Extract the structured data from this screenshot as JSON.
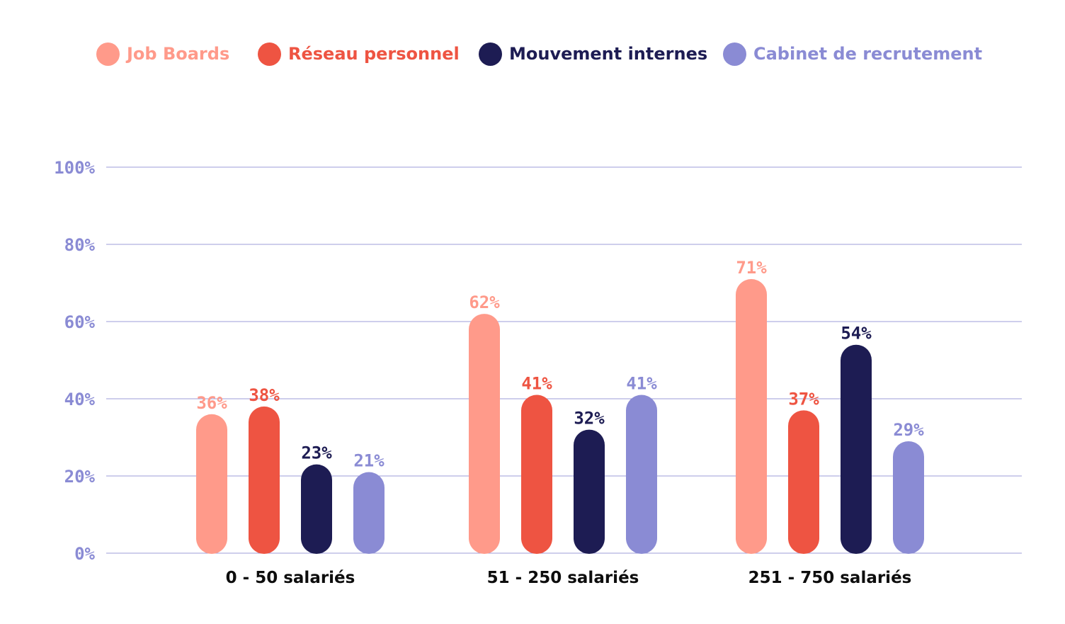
{
  "chart_data": {
    "type": "bar",
    "categories": [
      "0 - 50 salariés",
      "51 - 250 salariés",
      "251 - 750 salariés"
    ],
    "series": [
      {
        "name": "Job Boards",
        "values": [
          36,
          62,
          71
        ],
        "labels": [
          "36%",
          "62%",
          "71%"
        ],
        "color": "#ff9a8a"
      },
      {
        "name": "Réseau personnel",
        "values": [
          38,
          41,
          37
        ],
        "labels": [
          "38%",
          "41%",
          "37%"
        ],
        "color": "#ee5442"
      },
      {
        "name": "Mouvement internes",
        "values": [
          23,
          32,
          54
        ],
        "labels": [
          "23%",
          "32%",
          "54%"
        ],
        "color": "#1d1c53"
      },
      {
        "name": "Cabinet de recrutement",
        "values": [
          21,
          41,
          29
        ],
        "labels": [
          "21%",
          "41%",
          "29%"
        ],
        "color": "#8a8bd4"
      }
    ],
    "y_ticks": [
      "0%",
      "20%",
      "40%",
      "60%",
      "80%",
      "100%"
    ],
    "ylim": [
      0,
      100
    ],
    "grid": true,
    "legend_position": "top",
    "colors": {
      "axis_text": "#8a8bd4",
      "gridline": "#9c9cd8",
      "category_text": "#0d0d0d"
    }
  }
}
